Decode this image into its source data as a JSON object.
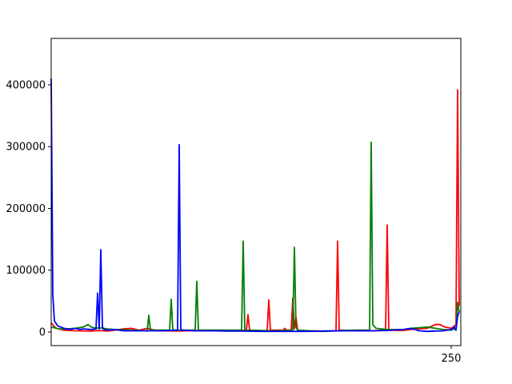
{
  "chart_data": {
    "type": "line",
    "title": "",
    "xlabel": "",
    "ylabel": "",
    "xlim": [
      0,
      256
    ],
    "ylim": [
      -22000,
      475000
    ],
    "grid": false,
    "legend": "none",
    "x_ticks": [
      {
        "value": 250,
        "label": "250"
      }
    ],
    "y_ticks": [
      {
        "value": 0,
        "label": "0"
      },
      {
        "value": 100000,
        "label": "100000"
      },
      {
        "value": 200000,
        "label": "200000"
      },
      {
        "value": 300000,
        "label": "300000"
      },
      {
        "value": 400000,
        "label": "400000"
      }
    ],
    "series": [
      {
        "color": "#ff0000",
        "points": [
          [
            0,
            15000
          ],
          [
            3,
            6000
          ],
          [
            8,
            3000
          ],
          [
            15,
            2000
          ],
          [
            25,
            1500
          ],
          [
            30,
            2500
          ],
          [
            35,
            1500
          ],
          [
            40,
            3000
          ],
          [
            45,
            5000
          ],
          [
            50,
            6000
          ],
          [
            55,
            3000
          ],
          [
            60,
            6000
          ],
          [
            63,
            4000
          ],
          [
            65,
            3000
          ],
          [
            70,
            2000
          ],
          [
            80,
            1500
          ],
          [
            90,
            2500
          ],
          [
            100,
            2000
          ],
          [
            110,
            2000
          ],
          [
            120,
            2500
          ],
          [
            122,
            3000
          ],
          [
            123,
            28000
          ],
          [
            124,
            3000
          ],
          [
            135,
            2000
          ],
          [
            136,
            52000
          ],
          [
            137,
            3000
          ],
          [
            145,
            3000
          ],
          [
            146,
            6000
          ],
          [
            147,
            3000
          ],
          [
            150,
            3000
          ],
          [
            151,
            55000
          ],
          [
            152,
            5000
          ],
          [
            153,
            24000
          ],
          [
            154,
            3000
          ],
          [
            160,
            2000
          ],
          [
            170,
            1500
          ],
          [
            178,
            2000
          ],
          [
            179,
            147000
          ],
          [
            180,
            3000
          ],
          [
            190,
            2000
          ],
          [
            200,
            2000
          ],
          [
            209,
            3000
          ],
          [
            210,
            173000
          ],
          [
            211,
            3000
          ],
          [
            220,
            2500
          ],
          [
            225,
            4000
          ],
          [
            230,
            5000
          ],
          [
            235,
            6000
          ],
          [
            240,
            12000
          ],
          [
            243,
            12000
          ],
          [
            246,
            8000
          ],
          [
            250,
            6000
          ],
          [
            253,
            12000
          ],
          [
            254,
            392000
          ],
          [
            255,
            42000
          ]
        ]
      },
      {
        "color": "#008000",
        "points": [
          [
            0,
            8000
          ],
          [
            5,
            5000
          ],
          [
            10,
            5000
          ],
          [
            15,
            6000
          ],
          [
            20,
            8000
          ],
          [
            23,
            12000
          ],
          [
            25,
            8000
          ],
          [
            28,
            6000
          ],
          [
            30,
            7000
          ],
          [
            35,
            5000
          ],
          [
            40,
            4000
          ],
          [
            50,
            3000
          ],
          [
            60,
            2000
          ],
          [
            61,
            27000
          ],
          [
            62,
            3000
          ],
          [
            70,
            3000
          ],
          [
            74,
            3000
          ],
          [
            75,
            53000
          ],
          [
            76,
            3000
          ],
          [
            90,
            3000
          ],
          [
            91,
            82000
          ],
          [
            92,
            3000
          ],
          [
            110,
            3000
          ],
          [
            119,
            3000
          ],
          [
            120,
            147000
          ],
          [
            121,
            3000
          ],
          [
            140,
            2000
          ],
          [
            151,
            3000
          ],
          [
            152,
            137000
          ],
          [
            153,
            8000
          ],
          [
            154,
            3000
          ],
          [
            170,
            1000
          ],
          [
            190,
            3000
          ],
          [
            199,
            3000
          ],
          [
            200,
            307000
          ],
          [
            201,
            12000
          ],
          [
            203,
            6000
          ],
          [
            210,
            4000
          ],
          [
            220,
            4000
          ],
          [
            225,
            6000
          ],
          [
            230,
            7000
          ],
          [
            235,
            8000
          ],
          [
            240,
            6000
          ],
          [
            245,
            4000
          ],
          [
            250,
            3000
          ],
          [
            252,
            5000
          ],
          [
            253,
            3000
          ],
          [
            254,
            48000
          ],
          [
            255,
            32000
          ]
        ]
      },
      {
        "color": "#0000ff",
        "points": [
          [
            0,
            410000
          ],
          [
            1,
            60000
          ],
          [
            2,
            18000
          ],
          [
            4,
            10000
          ],
          [
            6,
            8000
          ],
          [
            8,
            6000
          ],
          [
            10,
            5000
          ],
          [
            12,
            4000
          ],
          [
            15,
            6000
          ],
          [
            18,
            4000
          ],
          [
            20,
            5000
          ],
          [
            25,
            4000
          ],
          [
            28,
            5000
          ],
          [
            29,
            63000
          ],
          [
            30,
            5000
          ],
          [
            31,
            133000
          ],
          [
            32,
            8000
          ],
          [
            33,
            4000
          ],
          [
            35,
            3000
          ],
          [
            40,
            4000
          ],
          [
            45,
            2000
          ],
          [
            50,
            2000
          ],
          [
            60,
            2000
          ],
          [
            70,
            2000
          ],
          [
            79,
            3000
          ],
          [
            80,
            303000
          ],
          [
            81,
            3000
          ],
          [
            90,
            2000
          ],
          [
            100,
            2000
          ],
          [
            110,
            1500
          ],
          [
            120,
            1500
          ],
          [
            130,
            1000
          ],
          [
            140,
            1000
          ],
          [
            150,
            1000
          ],
          [
            160,
            1000
          ],
          [
            170,
            1500
          ],
          [
            180,
            2000
          ],
          [
            190,
            2000
          ],
          [
            200,
            2000
          ],
          [
            210,
            2500
          ],
          [
            220,
            4000
          ],
          [
            225,
            6000
          ],
          [
            230,
            2000
          ],
          [
            235,
            1000
          ],
          [
            240,
            1500
          ],
          [
            245,
            2000
          ],
          [
            250,
            4000
          ],
          [
            252,
            8000
          ],
          [
            253,
            3000
          ],
          [
            254,
            25000
          ],
          [
            255,
            33000
          ]
        ]
      }
    ]
  }
}
